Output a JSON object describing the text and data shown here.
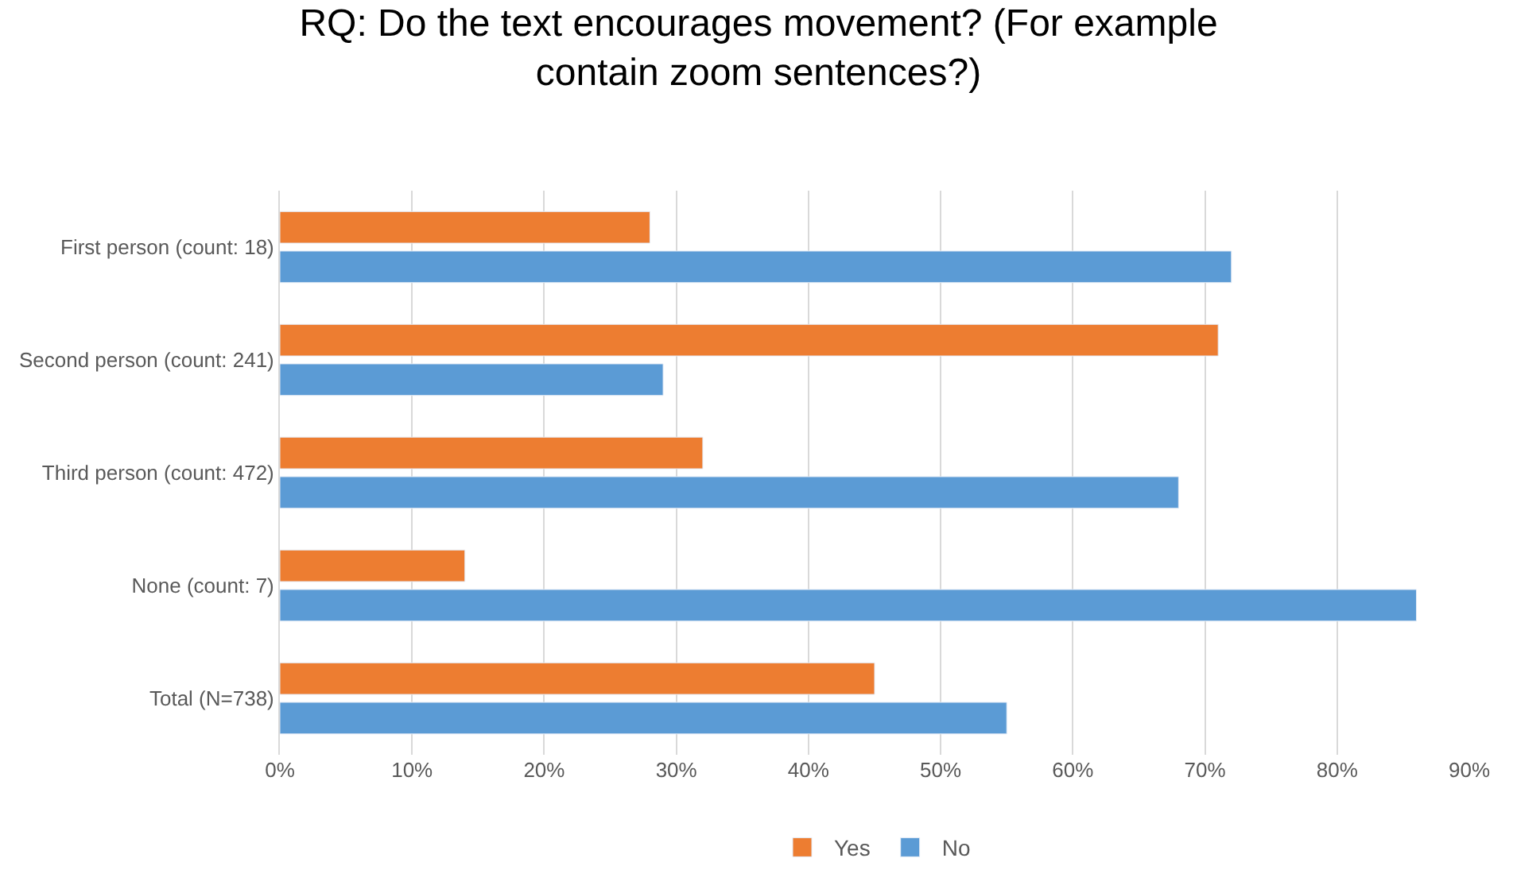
{
  "chart_data": {
    "type": "bar",
    "orientation": "horizontal",
    "title": "RQ: Do the text encourages movement? (For example contain zoom sentences?)",
    "categories": [
      "First person (count: 18)",
      "Second person (count: 241)",
      "Third person (count: 472)",
      "None (count: 7)",
      "Total (N=738)"
    ],
    "series": [
      {
        "name": "Yes",
        "color": "#ed7d31",
        "values": [
          28,
          71,
          32,
          14,
          45
        ]
      },
      {
        "name": "No",
        "color": "#5b9bd5",
        "values": [
          72,
          29,
          68,
          86,
          55
        ]
      }
    ],
    "xlim": [
      0,
      90
    ],
    "xticks": [
      {
        "value": 0,
        "label": "0%"
      },
      {
        "value": 10,
        "label": "10%"
      },
      {
        "value": 20,
        "label": "20%"
      },
      {
        "value": 30,
        "label": "30%"
      },
      {
        "value": 40,
        "label": "40%"
      },
      {
        "value": 50,
        "label": "50%"
      },
      {
        "value": 60,
        "label": "60%"
      },
      {
        "value": 70,
        "label": "70%"
      },
      {
        "value": 80,
        "label": "80%"
      },
      {
        "value": 90,
        "label": "90%"
      }
    ],
    "grid": "x",
    "legend": "bottom"
  }
}
